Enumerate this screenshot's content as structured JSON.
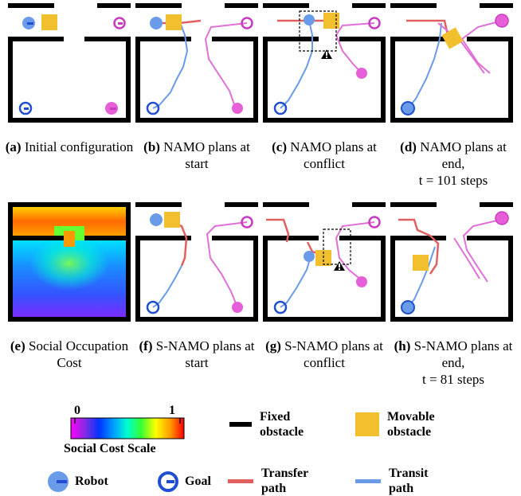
{
  "captions": [
    {
      "tag": "(a)",
      "text": "Initial configuration"
    },
    {
      "tag": "(b)",
      "text": "NAMO plans at start"
    },
    {
      "tag": "(c)",
      "text": "NAMO plans at conflict"
    },
    {
      "tag": "(d)",
      "text": "NAMO plans at end,",
      "line2": "t = 101 steps"
    },
    {
      "tag": "(e)",
      "text": "Social Occupation Cost"
    },
    {
      "tag": "(f)",
      "text": "S-NAMO plans at start"
    },
    {
      "tag": "(g)",
      "text": "S-NAMO plans at conflict"
    },
    {
      "tag": "(h)",
      "text": "S-NAMO plans at end,",
      "line2": "t = 81 steps"
    }
  ],
  "legend": {
    "scale_min": "0",
    "scale_max": "1",
    "scale_title": "Social Cost Scale",
    "fixed_obstacle": "Fixed obstacle",
    "movable_obstacle": "Movable obstacle",
    "robot": "Robot",
    "goal": "Goal",
    "transfer_path": "Transfer path",
    "transit_path": "Transit path"
  },
  "colors": {
    "robot": "#6a9be8",
    "goal_robot": "#1f4fd0",
    "robot2": "#e65fd8",
    "goal_robot2": "#c93ac0",
    "movable": "#f2bf2e",
    "transfer": "#e06060",
    "transit": "#6a9be8",
    "pink_path": "#e070d8",
    "warning": "#000000"
  }
}
